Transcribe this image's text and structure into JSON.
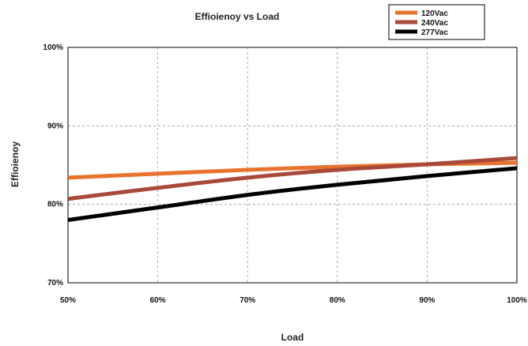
{
  "chart_data": {
    "type": "line",
    "title": "Effioienoy vs Load",
    "xlabel": "Load",
    "ylabel": "Effioienoy",
    "x": [
      50,
      60,
      70,
      80,
      90,
      100
    ],
    "x_tick_labels": [
      "50%",
      "60%",
      "70%",
      "80%",
      "90%",
      "100%"
    ],
    "y_ticks": [
      70,
      80,
      90,
      100
    ],
    "y_tick_labels": [
      "70%",
      "80%",
      "90%",
      "100%"
    ],
    "xlim": [
      50,
      100
    ],
    "ylim": [
      70,
      100
    ],
    "grid": true,
    "legend_position": "top-right",
    "series": [
      {
        "name": "120Vac",
        "color": "#E8732E",
        "values": [
          83.4,
          83.9,
          84.4,
          84.8,
          85.1,
          85.3
        ]
      },
      {
        "name": "240Vac",
        "color": "#A8493A",
        "values": [
          80.7,
          82.1,
          83.4,
          84.4,
          85.1,
          85.9
        ]
      },
      {
        "name": "277Vac",
        "color": "#000000",
        "values": [
          78.0,
          79.6,
          81.2,
          82.5,
          83.6,
          84.6
        ]
      }
    ]
  }
}
